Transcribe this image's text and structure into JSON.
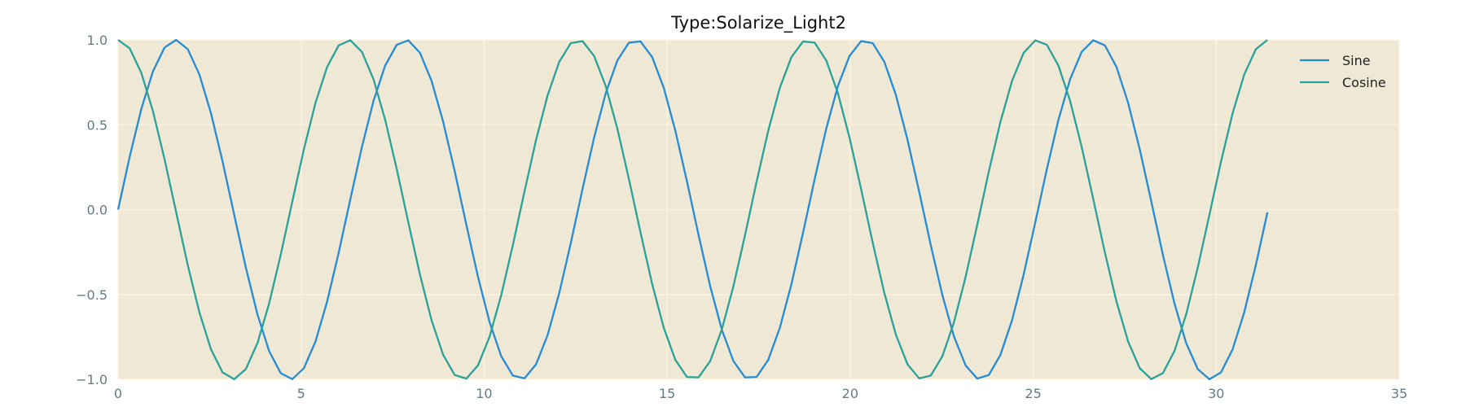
{
  "chart_data": {
    "type": "line",
    "title": "Type:Solarize_Light2",
    "xlabel": "",
    "ylabel": "",
    "xlim": [
      0,
      35
    ],
    "ylim": [
      -1.0,
      1.0
    ],
    "x_ticks": [
      0,
      5,
      10,
      15,
      20,
      25,
      30,
      35
    ],
    "y_ticks": [
      -1.0,
      -0.5,
      0.0,
      0.5,
      1.0
    ],
    "x_tick_labels": [
      "0",
      "5",
      "10",
      "15",
      "20",
      "25",
      "30",
      "35"
    ],
    "y_tick_labels": [
      "−1.0",
      "−0.5",
      "0.0",
      "0.5",
      "1.0"
    ],
    "grid": true,
    "legend_position": "top-right",
    "x_range": [
      0,
      31.4
    ],
    "num_points": 100,
    "series": [
      {
        "name": "Sine",
        "function": "sin",
        "color": "#268bd2"
      },
      {
        "name": "Cosine",
        "function": "cos",
        "color": "#2aa198"
      }
    ]
  },
  "colors": {
    "plot_background": "#eee8d5",
    "grid": "#fdf6e3",
    "tick_text": "#657b83",
    "title_text": "#111111"
  }
}
